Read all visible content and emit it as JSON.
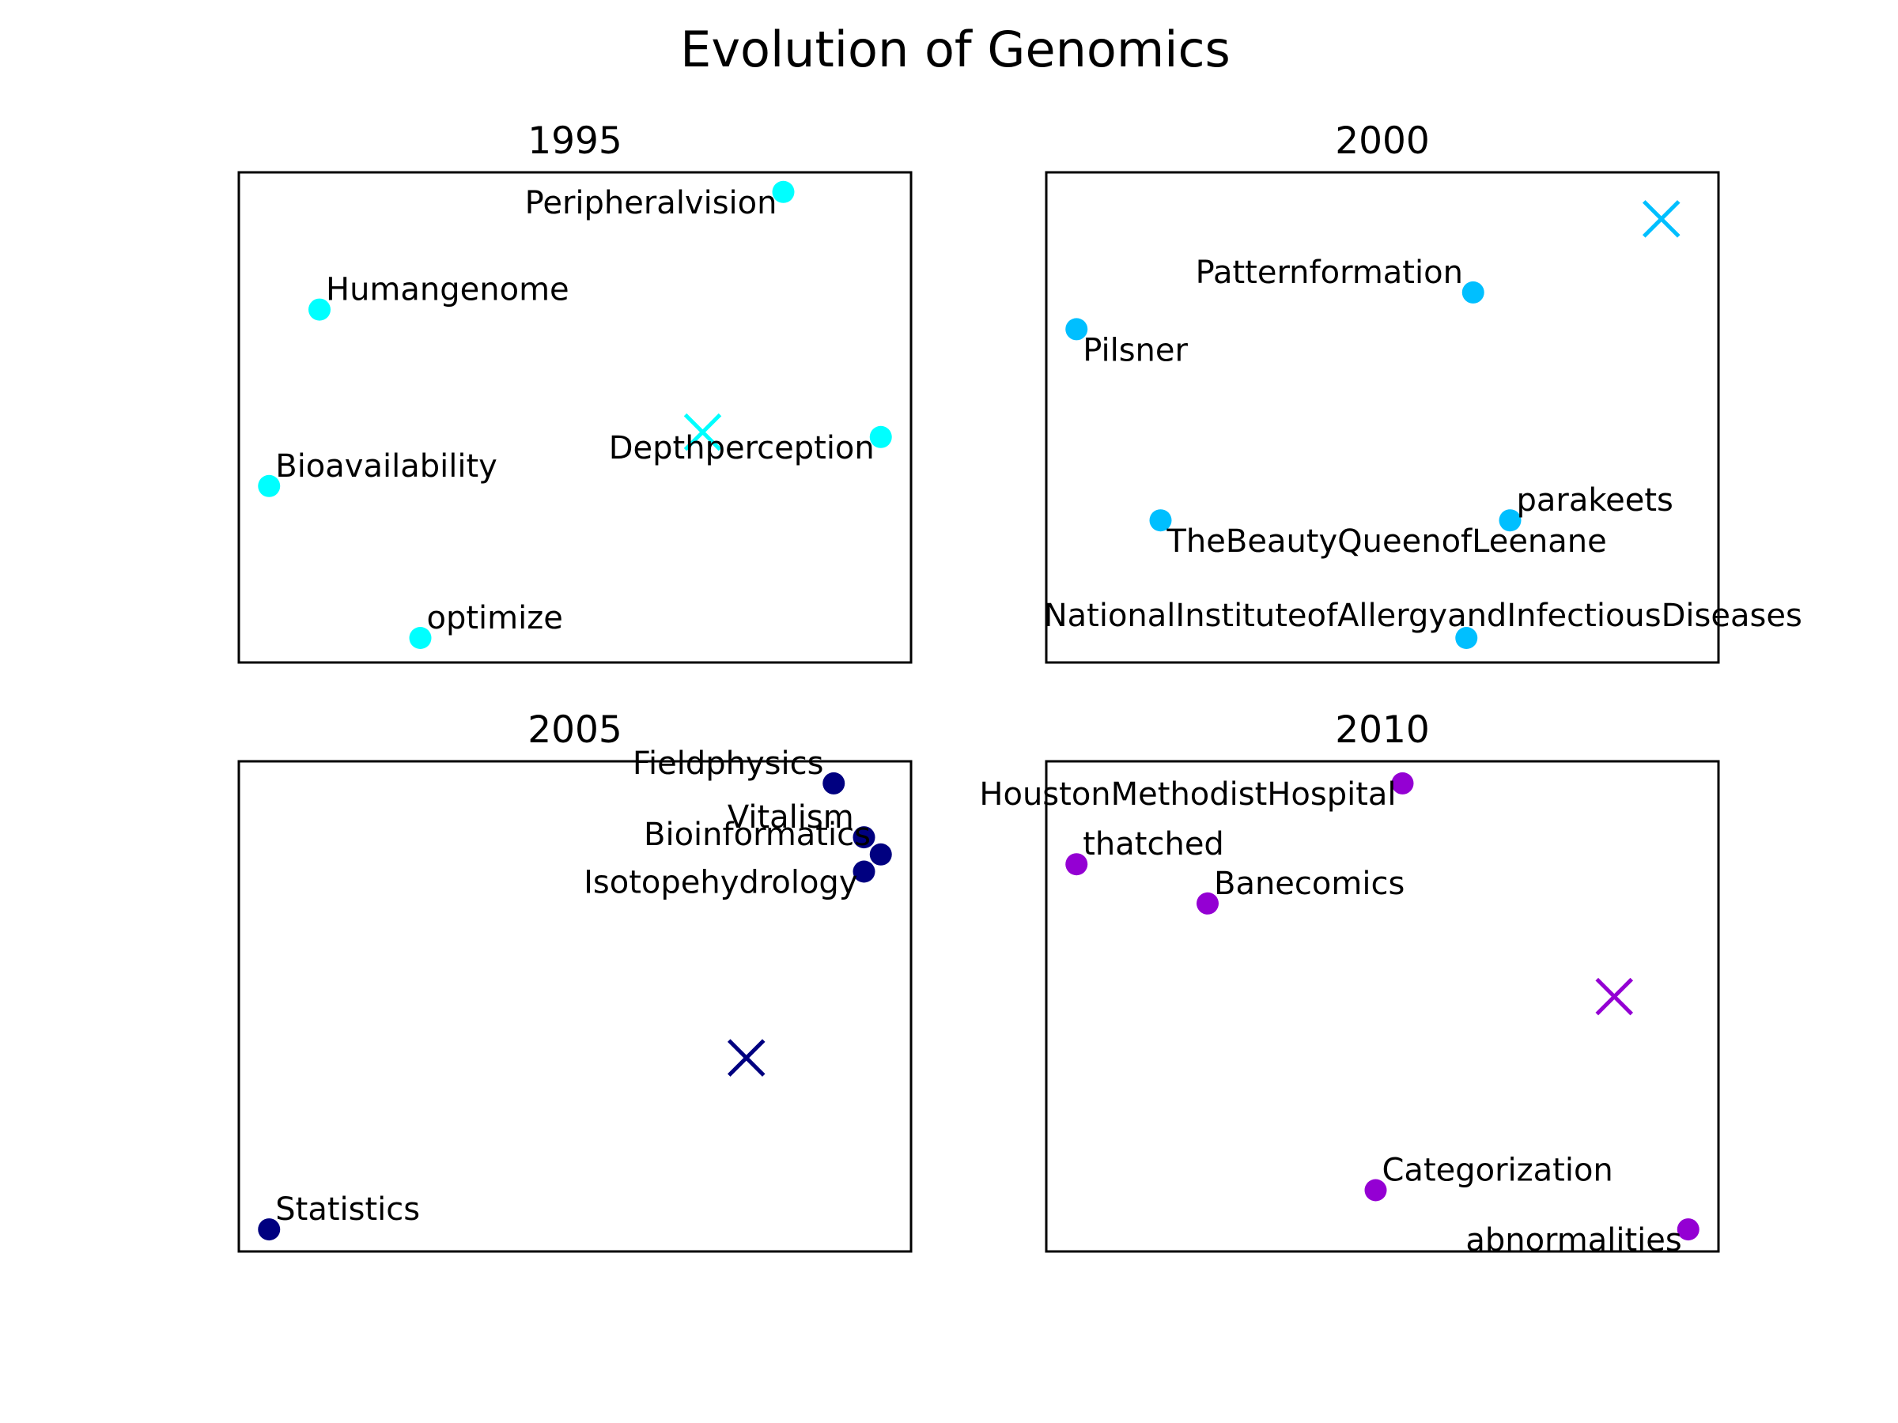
{
  "title": "Evolution of Genomics",
  "chart_data": [
    {
      "type": "scatter",
      "title": "1995",
      "color": "#00ffff",
      "xlim": [
        0,
        100
      ],
      "ylim": [
        0,
        100
      ],
      "axes_ticks": false,
      "centroid": {
        "x": 69,
        "y": 47
      },
      "points": [
        {
          "label": "Peripheralvision",
          "x": 81,
          "y": 96,
          "label_side": "left-below"
        },
        {
          "label": "Humangenome",
          "x": 12,
          "y": 72,
          "label_side": "right-above"
        },
        {
          "label": "Depthperception",
          "x": 95.5,
          "y": 46,
          "label_side": "left-below"
        },
        {
          "label": "Bioavailability",
          "x": 4.5,
          "y": 36,
          "label_side": "right-above"
        },
        {
          "label": "optimize",
          "x": 27,
          "y": 5,
          "label_side": "right-above"
        }
      ]
    },
    {
      "type": "scatter",
      "title": "2000",
      "color": "#00bfff",
      "xlim": [
        0,
        100
      ],
      "ylim": [
        0,
        100
      ],
      "axes_ticks": false,
      "centroid": {
        "x": 91.5,
        "y": 90.5
      },
      "points": [
        {
          "label": "Patternformation",
          "x": 63.5,
          "y": 75.5,
          "label_side": "left-above"
        },
        {
          "label": "Pilsner",
          "x": 4.5,
          "y": 68,
          "label_side": "right-below"
        },
        {
          "label": "TheBeautyQueenofLeenane",
          "x": 17,
          "y": 29,
          "label_side": "right-below"
        },
        {
          "label": "parakeets",
          "x": 69,
          "y": 29,
          "label_side": "right-above"
        },
        {
          "label": "NationalInstituteofAllergyandInfectiousDiseases",
          "x": 62.5,
          "y": 5,
          "label_side": "centered-above"
        }
      ]
    },
    {
      "type": "scatter",
      "title": "2005",
      "color": "#000080",
      "xlim": [
        0,
        100
      ],
      "ylim": [
        0,
        100
      ],
      "axes_ticks": false,
      "centroid": {
        "x": 75.5,
        "y": 39.5
      },
      "points": [
        {
          "label": "Fieldphysics",
          "x": 88.5,
          "y": 95.5,
          "label_side": "left-above"
        },
        {
          "label": "Vitalism",
          "x": 93,
          "y": 84.5,
          "label_side": "left-above"
        },
        {
          "label": "Bioinformatics",
          "x": 95.5,
          "y": 81,
          "label_side": "left-above"
        },
        {
          "label": "Isotopehydrology",
          "x": 93,
          "y": 77.5,
          "label_side": "left-below"
        },
        {
          "label": "Statistics",
          "x": 4.5,
          "y": 4.5,
          "label_side": "right-above"
        }
      ]
    },
    {
      "type": "scatter",
      "title": "2010",
      "color": "#9400d3",
      "xlim": [
        0,
        100
      ],
      "ylim": [
        0,
        100
      ],
      "axes_ticks": false,
      "centroid": {
        "x": 84.5,
        "y": 52
      },
      "points": [
        {
          "label": "HoustonMethodistHospital",
          "x": 53,
          "y": 95.5,
          "label_side": "left-below"
        },
        {
          "label": "thatched",
          "x": 4.5,
          "y": 79,
          "label_side": "right-above"
        },
        {
          "label": "Banecomics",
          "x": 24,
          "y": 71,
          "label_side": "right-above"
        },
        {
          "label": "Categorization",
          "x": 49,
          "y": 12.5,
          "label_side": "right-above"
        },
        {
          "label": "abnormalities",
          "x": 95.5,
          "y": 4.5,
          "label_side": "left-below"
        }
      ]
    }
  ]
}
